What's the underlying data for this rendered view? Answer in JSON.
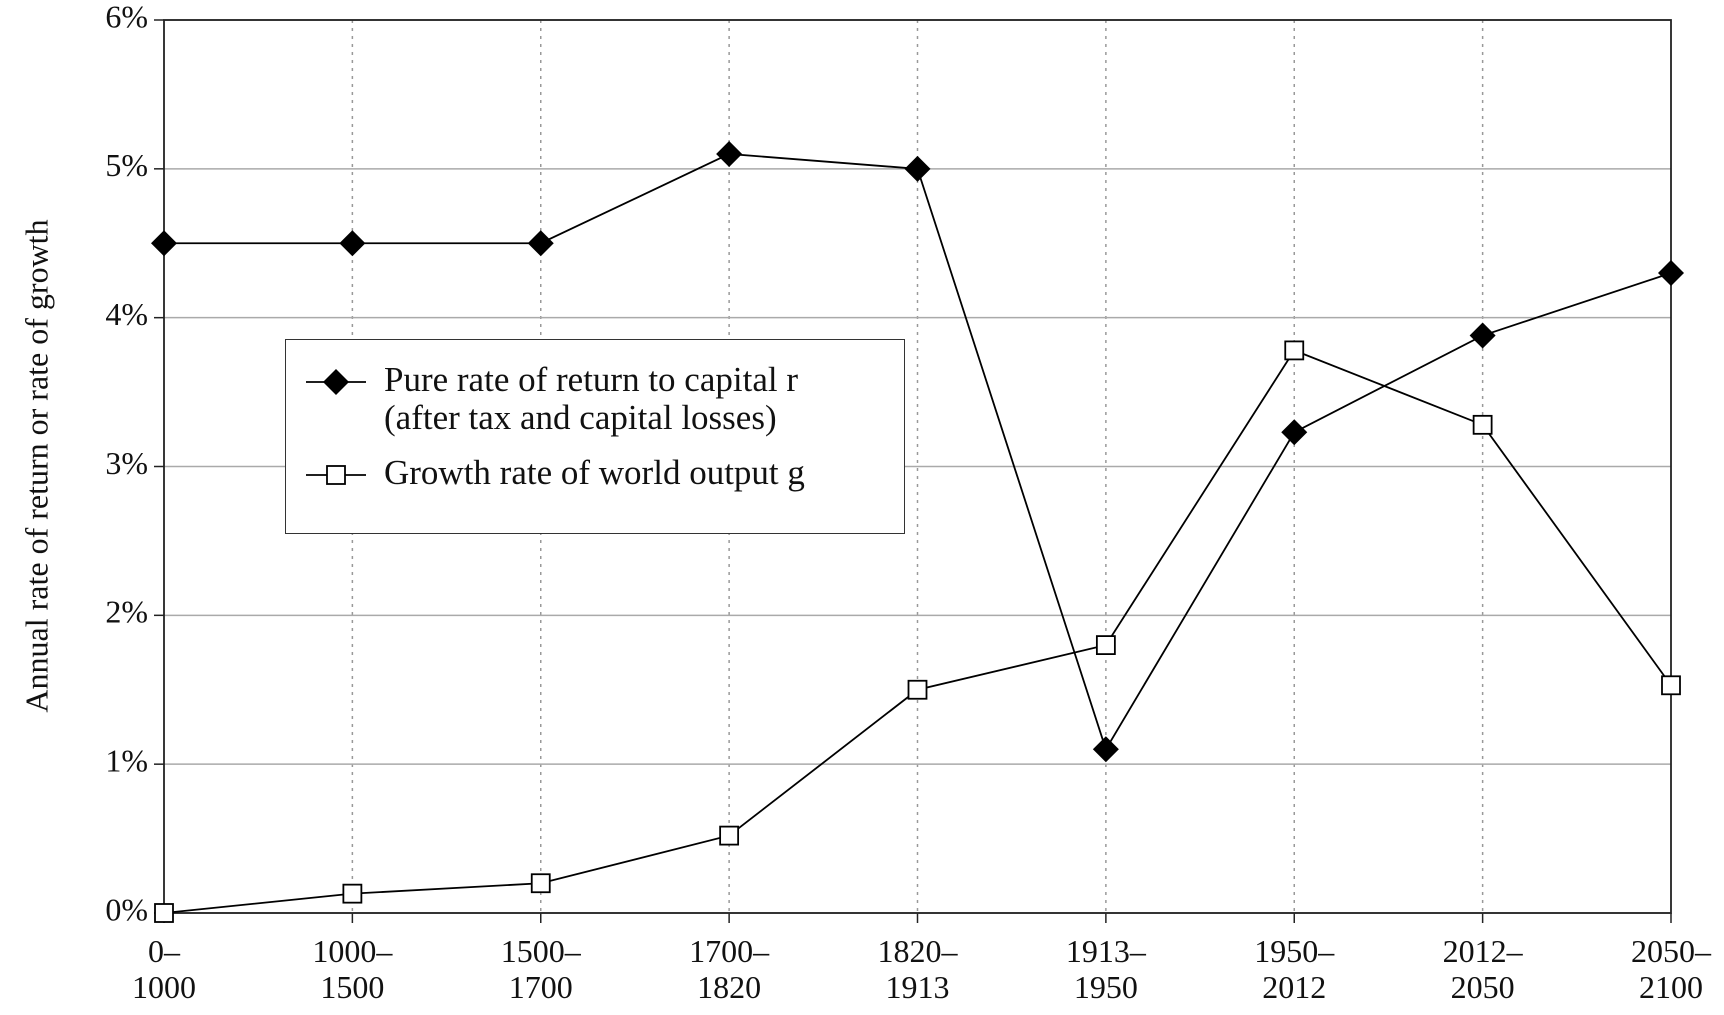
{
  "chart_data": {
    "type": "line",
    "y_label": "Annual rate of return or rate of growth",
    "categories": [
      "0–\n1000",
      "1000–\n1500",
      "1500–\n1700",
      "1700–\n1820",
      "1820–\n1913",
      "1913–\n1950",
      "1950–\n2012",
      "2012–\n2050",
      "2050–\n2100"
    ],
    "series": [
      {
        "name": "Pure rate of return to capital r\n(after tax and capital losses)",
        "color": "#000000",
        "marker": "filled-diamond",
        "values": [
          4.5,
          4.5,
          4.5,
          5.1,
          5.0,
          1.1,
          3.23,
          3.88,
          4.3
        ]
      },
      {
        "name": "Growth rate of world output g",
        "color": "#000000",
        "marker": "open-square",
        "values": [
          0.0,
          0.13,
          0.2,
          0.52,
          1.5,
          1.8,
          3.78,
          3.28,
          1.53
        ]
      }
    ],
    "ylim": [
      0,
      6
    ],
    "yticks": [
      {
        "value": 0,
        "label": "0%"
      },
      {
        "value": 1,
        "label": "1%"
      },
      {
        "value": 2,
        "label": "2%"
      },
      {
        "value": 3,
        "label": "3%"
      },
      {
        "value": 4,
        "label": "4%"
      },
      {
        "value": 5,
        "label": "5%"
      },
      {
        "value": 6,
        "label": "6%"
      }
    ],
    "grid": true
  }
}
